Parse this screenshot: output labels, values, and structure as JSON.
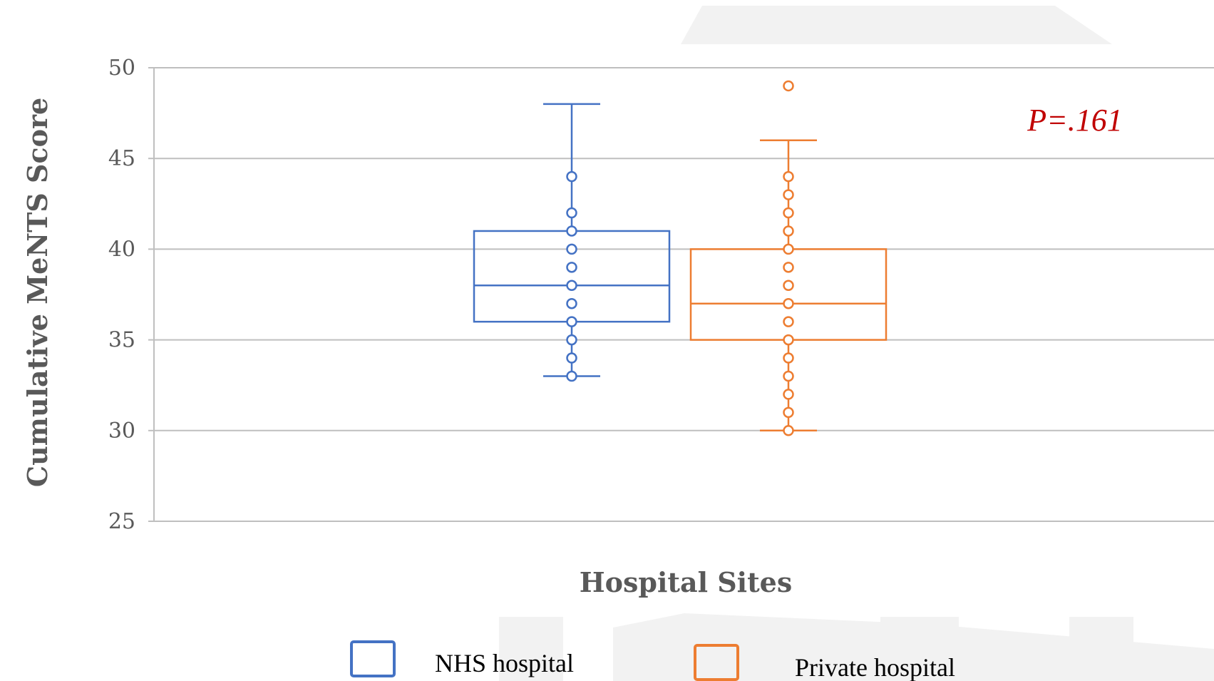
{
  "chart_data": {
    "type": "box",
    "title": "",
    "xlabel": "Hospital Sites",
    "ylabel": "Cumulative MeNTS Score",
    "ylim": [
      25,
      50
    ],
    "yticks": [
      "25",
      "30",
      "35",
      "40",
      "45",
      "50"
    ],
    "grid": true,
    "legend_position": "bottom",
    "annotation": "P=.161",
    "series": [
      {
        "name": "NHS hospital",
        "color": "#4472c4",
        "whisker_low": 33,
        "q1": 36,
        "median": 38,
        "q3": 41,
        "whisker_high": 48,
        "points": [
          33,
          34,
          35,
          36,
          37,
          38,
          39,
          40,
          41,
          42,
          44
        ]
      },
      {
        "name": "Private hospital",
        "color": "#ed7d31",
        "whisker_low": 30,
        "q1": 35,
        "median": 37,
        "q3": 40,
        "whisker_high": 46,
        "points": [
          30,
          31,
          32,
          33,
          34,
          35,
          36,
          37,
          38,
          39,
          40,
          41,
          42,
          43,
          44
        ],
        "outliers": [
          49
        ]
      }
    ]
  }
}
